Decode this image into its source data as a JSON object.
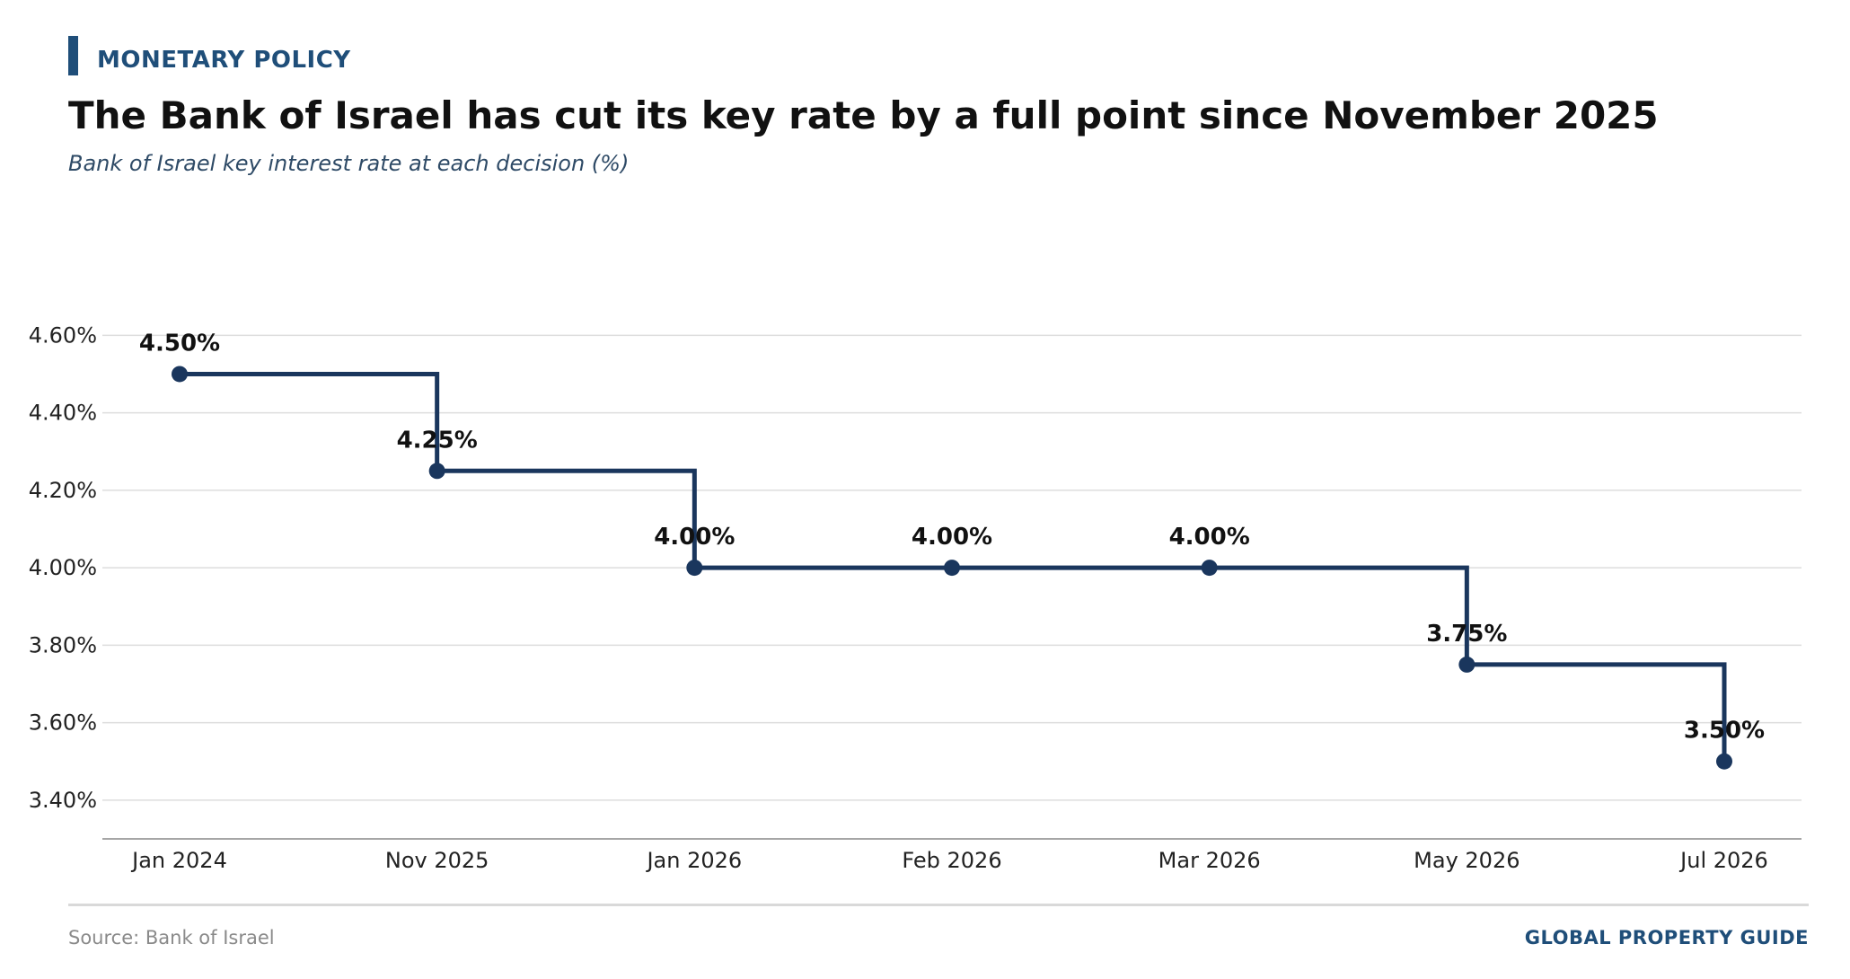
{
  "header": {
    "kicker": "MONETARY POLICY",
    "title": "The Bank of Israel has cut its key rate by a full point since November 2025",
    "subtitle": "Bank of Israel key interest rate at each decision (%)"
  },
  "footer": {
    "source": "Source: Bank of Israel",
    "brand": "GLOBAL PROPERTY GUIDE"
  },
  "colors": {
    "line": "#1a365d",
    "accent": "#1f4e79",
    "grid": "#dddddd",
    "axis": "#888888"
  },
  "chart_data": {
    "type": "line",
    "step": "post",
    "categories": [
      "Jan 2024",
      "Nov 2025",
      "Jan 2026",
      "Feb 2026",
      "Mar 2026",
      "May 2026",
      "Jul 2026"
    ],
    "series": [
      {
        "values": [
          4.5,
          4.25,
          4.0,
          4.0,
          4.0,
          3.75,
          3.5
        ],
        "labels": [
          "4.50%",
          "4.25%",
          "4.00%",
          "4.00%",
          "4.00%",
          "3.75%",
          "3.50%"
        ]
      }
    ],
    "yticks": [
      3.4,
      3.6,
      3.8,
      4.0,
      4.2,
      4.4,
      4.6
    ],
    "ytick_labels": [
      "3.40%",
      "3.60%",
      "3.80%",
      "4.00%",
      "4.20%",
      "4.40%",
      "4.60%"
    ],
    "ylim": [
      3.3,
      4.77
    ],
    "grid": "horizontal",
    "legend": "none"
  }
}
